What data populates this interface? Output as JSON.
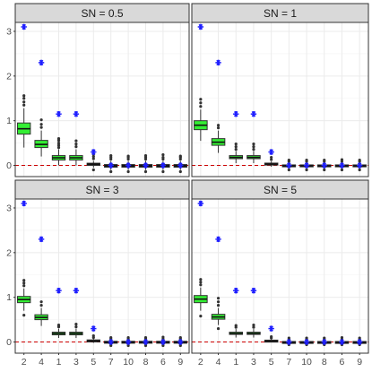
{
  "chart_data": {
    "type": "boxplot",
    "layout": "2x2 facets",
    "categories": [
      "2",
      "4",
      "1",
      "3",
      "5",
      "7",
      "10",
      "8",
      "6",
      "9"
    ],
    "y_ticks": [
      0,
      1,
      2,
      3
    ],
    "ylim": [
      -0.25,
      3.2
    ],
    "reference_line": {
      "y": 0,
      "color": "#cc0000",
      "style": "dashed"
    },
    "colors": {
      "box_highlight": "#33ee33",
      "box_default": "#1a1a1a",
      "true_value_marker": "#1f1fff",
      "outlier": "#333333",
      "strip_background": "#d9d9d9",
      "panel_border": "#333333",
      "grid": "#ebebeb"
    },
    "true_values": [
      3.1,
      2.3,
      1.15,
      1.15,
      0.3,
      0,
      0,
      0,
      0,
      0
    ],
    "panels": [
      {
        "title": "SN =  0.5",
        "boxes": [
          {
            "q1": 0.7,
            "median": 0.82,
            "q3": 0.95,
            "wlo": 0.4,
            "whi": 1.28,
            "outlow": [],
            "outhigh": [
              1.35,
              1.42,
              1.5,
              1.56
            ]
          },
          {
            "q1": 0.4,
            "median": 0.47,
            "q3": 0.56,
            "wlo": 0.2,
            "whi": 0.78,
            "outlow": [],
            "outhigh": [
              0.85,
              0.92,
              1.02
            ]
          },
          {
            "q1": 0.12,
            "median": 0.17,
            "q3": 0.22,
            "wlo": 0.0,
            "whi": 0.36,
            "outlow": [],
            "outhigh": [
              0.4,
              0.45,
              0.5,
              0.56,
              0.6
            ]
          },
          {
            "q1": 0.12,
            "median": 0.17,
            "q3": 0.22,
            "wlo": 0.0,
            "whi": 0.36,
            "outlow": [],
            "outhigh": [
              0.42,
              0.48,
              0.55
            ]
          },
          {
            "q1": 0.0,
            "median": 0.03,
            "q3": 0.05,
            "wlo": -0.05,
            "whi": 0.1,
            "outlow": [
              -0.1
            ],
            "outhigh": [
              0.15,
              0.2,
              0.25
            ]
          },
          {
            "q1": -0.04,
            "median": -0.01,
            "q3": 0.02,
            "wlo": -0.1,
            "whi": 0.1,
            "outlow": [
              -0.14
            ],
            "outhigh": [
              0.14,
              0.18,
              0.22
            ]
          },
          {
            "q1": -0.04,
            "median": -0.01,
            "q3": 0.02,
            "wlo": -0.1,
            "whi": 0.1,
            "outlow": [
              -0.14
            ],
            "outhigh": [
              0.14,
              0.18,
              0.21
            ]
          },
          {
            "q1": -0.04,
            "median": -0.01,
            "q3": 0.02,
            "wlo": -0.1,
            "whi": 0.1,
            "outlow": [
              -0.14
            ],
            "outhigh": [
              0.14,
              0.18,
              0.22
            ]
          },
          {
            "q1": -0.04,
            "median": -0.01,
            "q3": 0.02,
            "wlo": -0.1,
            "whi": 0.1,
            "outlow": [
              -0.14
            ],
            "outhigh": [
              0.14,
              0.18,
              0.24
            ]
          },
          {
            "q1": -0.04,
            "median": -0.01,
            "q3": 0.02,
            "wlo": -0.1,
            "whi": 0.1,
            "outlow": [
              -0.14
            ],
            "outhigh": [
              0.14,
              0.18,
              0.21
            ]
          }
        ]
      },
      {
        "title": "SN = 1",
        "boxes": [
          {
            "q1": 0.8,
            "median": 0.9,
            "q3": 1.0,
            "wlo": 0.55,
            "whi": 1.25,
            "outlow": [],
            "outhigh": [
              1.32,
              1.4,
              1.48
            ]
          },
          {
            "q1": 0.45,
            "median": 0.52,
            "q3": 0.6,
            "wlo": 0.28,
            "whi": 0.78,
            "outlow": [],
            "outhigh": [
              0.84,
              0.9
            ]
          },
          {
            "q1": 0.15,
            "median": 0.18,
            "q3": 0.22,
            "wlo": 0.05,
            "whi": 0.32,
            "outlow": [],
            "outhigh": [
              0.36,
              0.42,
              0.48
            ]
          },
          {
            "q1": 0.15,
            "median": 0.18,
            "q3": 0.22,
            "wlo": 0.05,
            "whi": 0.32,
            "outlow": [],
            "outhigh": [
              0.36,
              0.42,
              0.48
            ]
          },
          {
            "q1": 0.01,
            "median": 0.03,
            "q3": 0.05,
            "wlo": -0.03,
            "whi": 0.09,
            "outlow": [],
            "outhigh": [
              0.13,
              0.18
            ]
          },
          {
            "q1": -0.03,
            "median": -0.01,
            "q3": 0.01,
            "wlo": -0.07,
            "whi": 0.06,
            "outlow": [
              -0.1
            ],
            "outhigh": [
              0.09,
              0.12
            ]
          },
          {
            "q1": -0.03,
            "median": -0.01,
            "q3": 0.01,
            "wlo": -0.07,
            "whi": 0.06,
            "outlow": [
              -0.1
            ],
            "outhigh": [
              0.09,
              0.12
            ]
          },
          {
            "q1": -0.03,
            "median": -0.01,
            "q3": 0.01,
            "wlo": -0.07,
            "whi": 0.06,
            "outlow": [
              -0.1
            ],
            "outhigh": [
              0.09,
              0.12
            ]
          },
          {
            "q1": -0.03,
            "median": -0.01,
            "q3": 0.01,
            "wlo": -0.07,
            "whi": 0.06,
            "outlow": [
              -0.1
            ],
            "outhigh": [
              0.09,
              0.13
            ]
          },
          {
            "q1": -0.03,
            "median": -0.01,
            "q3": 0.01,
            "wlo": -0.07,
            "whi": 0.06,
            "outlow": [
              -0.1
            ],
            "outhigh": [
              0.09,
              0.12
            ]
          }
        ]
      },
      {
        "title": "SN = 3",
        "boxes": [
          {
            "q1": 0.88,
            "median": 0.95,
            "q3": 1.02,
            "wlo": 0.7,
            "whi": 1.2,
            "outlow": [
              0.6
            ],
            "outhigh": [
              1.26,
              1.32,
              1.38
            ]
          },
          {
            "q1": 0.5,
            "median": 0.55,
            "q3": 0.61,
            "wlo": 0.36,
            "whi": 0.76,
            "outlow": [],
            "outhigh": [
              0.82,
              0.9
            ]
          },
          {
            "q1": 0.16,
            "median": 0.19,
            "q3": 0.22,
            "wlo": 0.09,
            "whi": 0.3,
            "outlow": [],
            "outhigh": [
              0.34,
              0.38
            ]
          },
          {
            "q1": 0.16,
            "median": 0.19,
            "q3": 0.22,
            "wlo": 0.09,
            "whi": 0.3,
            "outlow": [],
            "outhigh": [
              0.34,
              0.4
            ]
          },
          {
            "q1": 0.01,
            "median": 0.02,
            "q3": 0.04,
            "wlo": -0.02,
            "whi": 0.07,
            "outlow": [],
            "outhigh": [
              0.1,
              0.14
            ]
          },
          {
            "q1": -0.02,
            "median": -0.01,
            "q3": 0.01,
            "wlo": -0.05,
            "whi": 0.04,
            "outlow": [
              -0.08
            ],
            "outhigh": [
              0.07,
              0.1
            ]
          },
          {
            "q1": -0.02,
            "median": -0.01,
            "q3": 0.01,
            "wlo": -0.05,
            "whi": 0.04,
            "outlow": [
              -0.08
            ],
            "outhigh": [
              0.07,
              0.1
            ]
          },
          {
            "q1": -0.02,
            "median": -0.01,
            "q3": 0.01,
            "wlo": -0.05,
            "whi": 0.04,
            "outlow": [
              -0.08
            ],
            "outhigh": [
              0.07,
              0.1
            ]
          },
          {
            "q1": -0.02,
            "median": -0.01,
            "q3": 0.01,
            "wlo": -0.05,
            "whi": 0.04,
            "outlow": [
              -0.08
            ],
            "outhigh": [
              0.07,
              0.11
            ]
          },
          {
            "q1": -0.02,
            "median": -0.01,
            "q3": 0.01,
            "wlo": -0.05,
            "whi": 0.04,
            "outlow": [
              -0.08
            ],
            "outhigh": [
              0.07,
              0.1
            ]
          }
        ]
      },
      {
        "title": "SN = 5",
        "boxes": [
          {
            "q1": 0.88,
            "median": 0.96,
            "q3": 1.04,
            "wlo": 0.7,
            "whi": 1.22,
            "outlow": [
              0.58
            ],
            "outhigh": [
              1.28,
              1.34,
              1.4
            ]
          },
          {
            "q1": 0.51,
            "median": 0.56,
            "q3": 0.62,
            "wlo": 0.38,
            "whi": 0.76,
            "outlow": [
              0.3
            ],
            "outhigh": [
              0.82,
              0.9,
              0.98
            ]
          },
          {
            "q1": 0.17,
            "median": 0.19,
            "q3": 0.22,
            "wlo": 0.1,
            "whi": 0.29,
            "outlow": [],
            "outhigh": [
              0.33,
              0.37
            ]
          },
          {
            "q1": 0.17,
            "median": 0.19,
            "q3": 0.22,
            "wlo": 0.1,
            "whi": 0.29,
            "outlow": [],
            "outhigh": [
              0.33,
              0.38
            ]
          },
          {
            "q1": 0.01,
            "median": 0.02,
            "q3": 0.03,
            "wlo": -0.01,
            "whi": 0.06,
            "outlow": [],
            "outhigh": [
              0.09,
              0.12
            ]
          },
          {
            "q1": -0.02,
            "median": -0.01,
            "q3": 0.0,
            "wlo": -0.04,
            "whi": 0.03,
            "outlow": [
              -0.06
            ],
            "outhigh": [
              0.06,
              0.09
            ]
          },
          {
            "q1": -0.02,
            "median": -0.01,
            "q3": 0.0,
            "wlo": -0.04,
            "whi": 0.03,
            "outlow": [
              -0.06
            ],
            "outhigh": [
              0.06,
              0.09
            ]
          },
          {
            "q1": -0.02,
            "median": -0.01,
            "q3": 0.0,
            "wlo": -0.04,
            "whi": 0.03,
            "outlow": [
              -0.06
            ],
            "outhigh": [
              0.06,
              0.09
            ]
          },
          {
            "q1": -0.02,
            "median": -0.01,
            "q3": 0.0,
            "wlo": -0.04,
            "whi": 0.03,
            "outlow": [
              -0.06
            ],
            "outhigh": [
              0.06,
              0.1
            ]
          },
          {
            "q1": -0.02,
            "median": -0.01,
            "q3": 0.0,
            "wlo": -0.04,
            "whi": 0.03,
            "outlow": [
              -0.06
            ],
            "outhigh": [
              0.06,
              0.09
            ]
          }
        ]
      }
    ]
  }
}
